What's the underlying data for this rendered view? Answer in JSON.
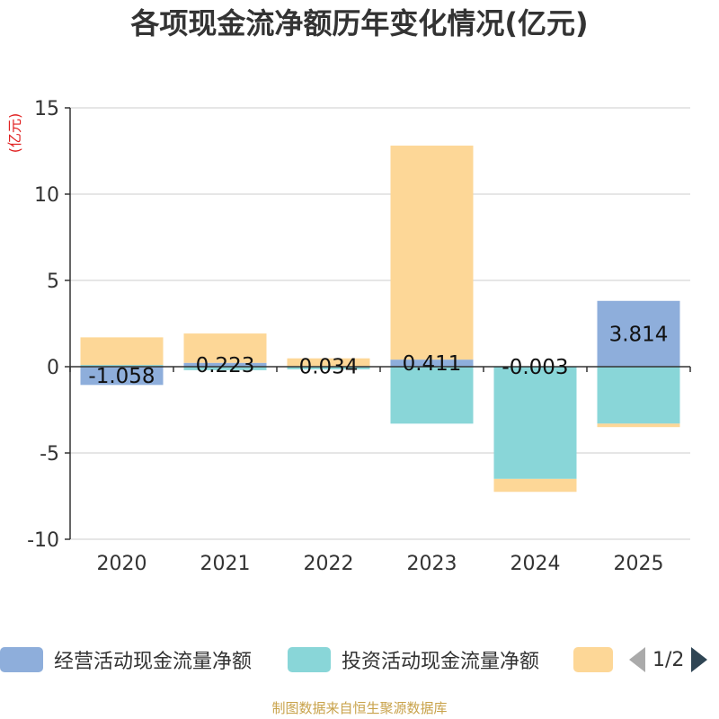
{
  "title": "各项现金流净额历年变化情况(亿元)",
  "chart_data": {
    "type": "bar",
    "stacked": true,
    "title": "各项现金流净额历年变化情况(亿元)",
    "ylabel": "(亿元)",
    "xlabel": "",
    "ylim": [
      -10,
      15
    ],
    "yticks": [
      -10,
      -5,
      0,
      5,
      10,
      15
    ],
    "grid": true,
    "categories": [
      "2020",
      "2021",
      "2022",
      "2023",
      "2024",
      "2025"
    ],
    "series": [
      {
        "name": "经营活动现金流量净额",
        "color": "#8eaedb",
        "values": [
          -1.058,
          0.223,
          0.034,
          0.411,
          -0.003,
          3.814
        ],
        "labels": [
          "-1.058",
          "0.223",
          "0.034",
          "0.411",
          "-0.003",
          "3.814"
        ]
      },
      {
        "name": "投资活动现金流量净额",
        "color": "#89d6d8",
        "values": [
          0.1,
          -0.2,
          -0.15,
          -3.3,
          -6.5,
          -3.3
        ]
      },
      {
        "name": "",
        "color": "#fdd797",
        "values": [
          1.6,
          1.7,
          0.45,
          12.4,
          -0.75,
          -0.2
        ]
      }
    ]
  },
  "legend": {
    "items": [
      {
        "label": "经营活动现金流量净额",
        "color": "#8eaedb"
      },
      {
        "label": "投资活动现金流量净额",
        "color": "#89d6d8"
      },
      {
        "label": "",
        "color": "#fdd797"
      }
    ],
    "page": "1/2"
  },
  "source": "制图数据来自恒生聚源数据库"
}
